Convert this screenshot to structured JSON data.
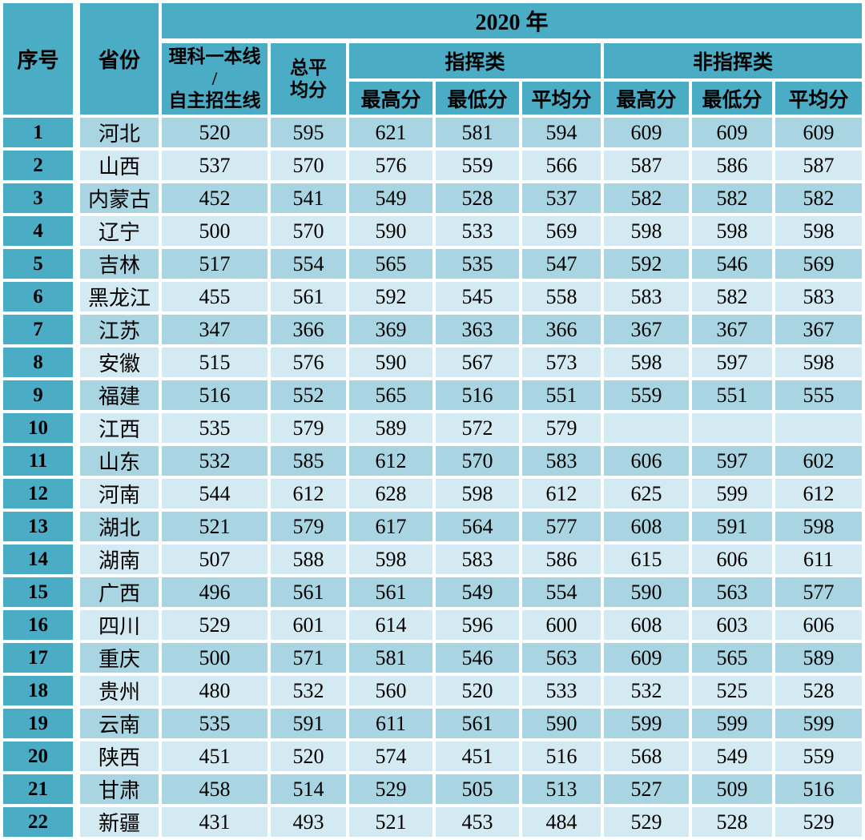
{
  "chart_data": {
    "type": "table",
    "title": "2020 年",
    "headers": {
      "index": "序号",
      "province": "省份",
      "year": "2020 年",
      "science_line": "理科一本线\n/\n自主招生线",
      "total_avg": "总平\n均分",
      "command": "指挥类",
      "non_command": "非指挥类",
      "max_score": "最高分",
      "min_score": "最低分",
      "avg_score": "平均分"
    },
    "colors": {
      "header_teal": "#4bacc6",
      "row_odd": "#a9d5e3",
      "row_even": "#d4eaf2",
      "gridline": "#ffffff",
      "text": "#000000"
    },
    "rows": [
      {
        "no": "1",
        "province": "河北",
        "line": "520",
        "total_avg": "595",
        "cmd_max": "621",
        "cmd_min": "581",
        "cmd_avg": "594",
        "noncmd_max": "609",
        "noncmd_min": "609",
        "noncmd_avg": "609"
      },
      {
        "no": "2",
        "province": "山西",
        "line": "537",
        "total_avg": "570",
        "cmd_max": "576",
        "cmd_min": "559",
        "cmd_avg": "566",
        "noncmd_max": "587",
        "noncmd_min": "586",
        "noncmd_avg": "587"
      },
      {
        "no": "3",
        "province": "内蒙古",
        "line": "452",
        "total_avg": "541",
        "cmd_max": "549",
        "cmd_min": "528",
        "cmd_avg": "537",
        "noncmd_max": "582",
        "noncmd_min": "582",
        "noncmd_avg": "582"
      },
      {
        "no": "4",
        "province": "辽宁",
        "line": "500",
        "total_avg": "570",
        "cmd_max": "590",
        "cmd_min": "533",
        "cmd_avg": "569",
        "noncmd_max": "598",
        "noncmd_min": "598",
        "noncmd_avg": "598"
      },
      {
        "no": "5",
        "province": "吉林",
        "line": "517",
        "total_avg": "554",
        "cmd_max": "565",
        "cmd_min": "535",
        "cmd_avg": "547",
        "noncmd_max": "592",
        "noncmd_min": "546",
        "noncmd_avg": "569"
      },
      {
        "no": "6",
        "province": "黑龙江",
        "line": "455",
        "total_avg": "561",
        "cmd_max": "592",
        "cmd_min": "545",
        "cmd_avg": "558",
        "noncmd_max": "583",
        "noncmd_min": "582",
        "noncmd_avg": "583"
      },
      {
        "no": "7",
        "province": "江苏",
        "line": "347",
        "total_avg": "366",
        "cmd_max": "369",
        "cmd_min": "363",
        "cmd_avg": "366",
        "noncmd_max": "367",
        "noncmd_min": "367",
        "noncmd_avg": "367"
      },
      {
        "no": "8",
        "province": "安徽",
        "line": "515",
        "total_avg": "576",
        "cmd_max": "590",
        "cmd_min": "567",
        "cmd_avg": "573",
        "noncmd_max": "598",
        "noncmd_min": "597",
        "noncmd_avg": "598"
      },
      {
        "no": "9",
        "province": "福建",
        "line": "516",
        "total_avg": "552",
        "cmd_max": "565",
        "cmd_min": "516",
        "cmd_avg": "551",
        "noncmd_max": "559",
        "noncmd_min": "551",
        "noncmd_avg": "555"
      },
      {
        "no": "10",
        "province": "江西",
        "line": "535",
        "total_avg": "579",
        "cmd_max": "589",
        "cmd_min": "572",
        "cmd_avg": "579",
        "noncmd_max": "",
        "noncmd_min": "",
        "noncmd_avg": ""
      },
      {
        "no": "11",
        "province": "山东",
        "line": "532",
        "total_avg": "585",
        "cmd_max": "612",
        "cmd_min": "570",
        "cmd_avg": "583",
        "noncmd_max": "606",
        "noncmd_min": "597",
        "noncmd_avg": "602"
      },
      {
        "no": "12",
        "province": "河南",
        "line": "544",
        "total_avg": "612",
        "cmd_max": "628",
        "cmd_min": "598",
        "cmd_avg": "612",
        "noncmd_max": "625",
        "noncmd_min": "599",
        "noncmd_avg": "612"
      },
      {
        "no": "13",
        "province": "湖北",
        "line": "521",
        "total_avg": "579",
        "cmd_max": "617",
        "cmd_min": "564",
        "cmd_avg": "577",
        "noncmd_max": "608",
        "noncmd_min": "591",
        "noncmd_avg": "598"
      },
      {
        "no": "14",
        "province": "湖南",
        "line": "507",
        "total_avg": "588",
        "cmd_max": "598",
        "cmd_min": "583",
        "cmd_avg": "586",
        "noncmd_max": "615",
        "noncmd_min": "606",
        "noncmd_avg": "611"
      },
      {
        "no": "15",
        "province": "广西",
        "line": "496",
        "total_avg": "561",
        "cmd_max": "561",
        "cmd_min": "549",
        "cmd_avg": "554",
        "noncmd_max": "590",
        "noncmd_min": "563",
        "noncmd_avg": "577"
      },
      {
        "no": "16",
        "province": "四川",
        "line": "529",
        "total_avg": "601",
        "cmd_max": "614",
        "cmd_min": "596",
        "cmd_avg": "600",
        "noncmd_max": "608",
        "noncmd_min": "603",
        "noncmd_avg": "606"
      },
      {
        "no": "17",
        "province": "重庆",
        "line": "500",
        "total_avg": "571",
        "cmd_max": "581",
        "cmd_min": "546",
        "cmd_avg": "563",
        "noncmd_max": "609",
        "noncmd_min": "565",
        "noncmd_avg": "589"
      },
      {
        "no": "18",
        "province": "贵州",
        "line": "480",
        "total_avg": "532",
        "cmd_max": "560",
        "cmd_min": "520",
        "cmd_avg": "533",
        "noncmd_max": "532",
        "noncmd_min": "525",
        "noncmd_avg": "528"
      },
      {
        "no": "19",
        "province": "云南",
        "line": "535",
        "total_avg": "591",
        "cmd_max": "611",
        "cmd_min": "561",
        "cmd_avg": "590",
        "noncmd_max": "599",
        "noncmd_min": "599",
        "noncmd_avg": "599"
      },
      {
        "no": "20",
        "province": "陕西",
        "line": "451",
        "total_avg": "520",
        "cmd_max": "574",
        "cmd_min": "451",
        "cmd_avg": "516",
        "noncmd_max": "568",
        "noncmd_min": "549",
        "noncmd_avg": "559"
      },
      {
        "no": "21",
        "province": "甘肃",
        "line": "458",
        "total_avg": "514",
        "cmd_max": "529",
        "cmd_min": "505",
        "cmd_avg": "513",
        "noncmd_max": "527",
        "noncmd_min": "509",
        "noncmd_avg": "516"
      },
      {
        "no": "22",
        "province": "新疆",
        "line": "431",
        "total_avg": "493",
        "cmd_max": "521",
        "cmd_min": "453",
        "cmd_avg": "484",
        "noncmd_max": "529",
        "noncmd_min": "528",
        "noncmd_avg": "529"
      }
    ]
  }
}
